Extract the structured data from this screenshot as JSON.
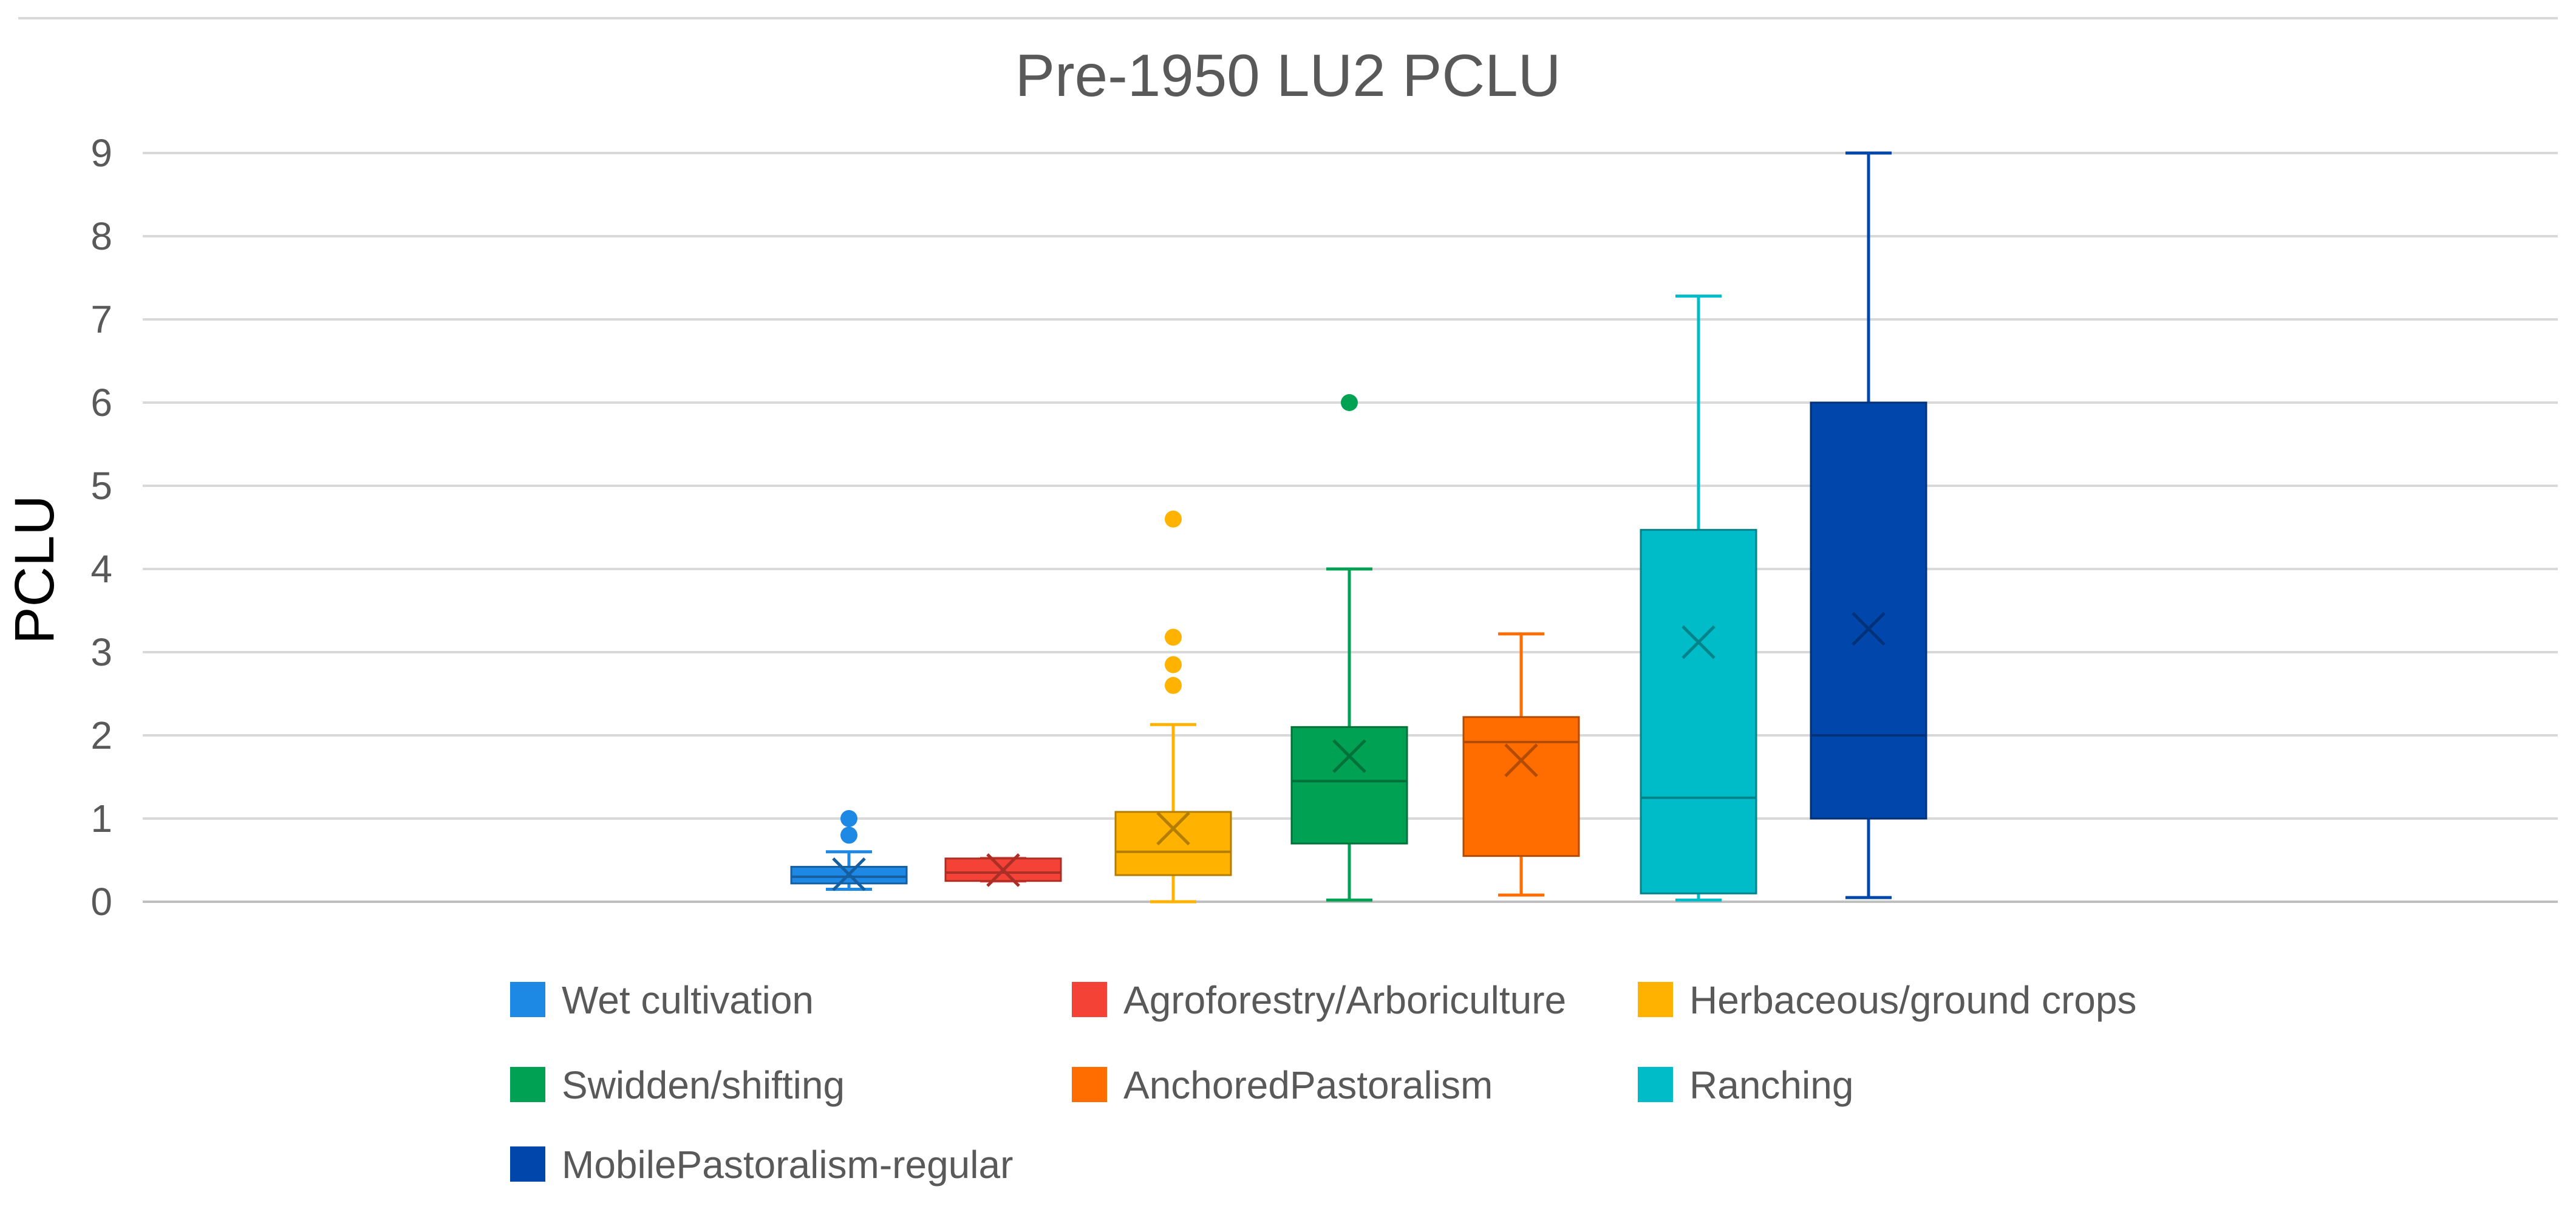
{
  "chart_data": {
    "type": "box",
    "title": "Pre-1950 LU2 PCLU",
    "xlabel": "",
    "ylabel": "PCLU",
    "ylim": [
      0,
      9
    ],
    "yticks": [
      "0",
      "1",
      "2",
      "3",
      "4",
      "5",
      "6",
      "7",
      "8",
      "9"
    ],
    "grid": true,
    "legend_position": "bottom",
    "series": [
      {
        "name": "Wet cultivation",
        "color": "#1E88E5",
        "min": 0.15,
        "q1": 0.22,
        "median": 0.3,
        "q3": 0.42,
        "max": 0.6,
        "mean": 0.33,
        "outliers": [
          0.8,
          1.0
        ]
      },
      {
        "name": "Agroforestry/Arboriculture",
        "color": "#F44336",
        "min": 0.25,
        "q1": 0.25,
        "median": 0.35,
        "q3": 0.52,
        "max": 0.52,
        "mean": 0.38,
        "outliers": []
      },
      {
        "name": "Herbaceous/ground crops",
        "color": "#FFB300",
        "min": 0.0,
        "q1": 0.32,
        "median": 0.6,
        "q3": 1.08,
        "max": 2.13,
        "mean": 0.88,
        "outliers": [
          2.6,
          2.85,
          3.18,
          4.6
        ]
      },
      {
        "name": "Swidden/shifting",
        "color": "#00A152",
        "min": 0.02,
        "q1": 0.7,
        "median": 1.45,
        "q3": 2.1,
        "max": 4.0,
        "mean": 1.75,
        "outliers": [
          6.0
        ]
      },
      {
        "name": "AnchoredPastoralism",
        "color": "#FF6D00",
        "min": 0.08,
        "q1": 0.55,
        "median": 1.92,
        "q3": 2.22,
        "max": 3.22,
        "mean": 1.7,
        "outliers": []
      },
      {
        "name": "Ranching",
        "color": "#00BCC8",
        "min": 0.02,
        "q1": 0.1,
        "median": 1.25,
        "q3": 4.47,
        "max": 7.28,
        "mean": 3.12,
        "outliers": []
      },
      {
        "name": "MobilePastoralism-regular",
        "color": "#0146AB",
        "min": 0.05,
        "q1": 1.0,
        "median": 2.0,
        "q3": 6.0,
        "max": 9.0,
        "mean": 3.28,
        "outliers": []
      }
    ]
  }
}
